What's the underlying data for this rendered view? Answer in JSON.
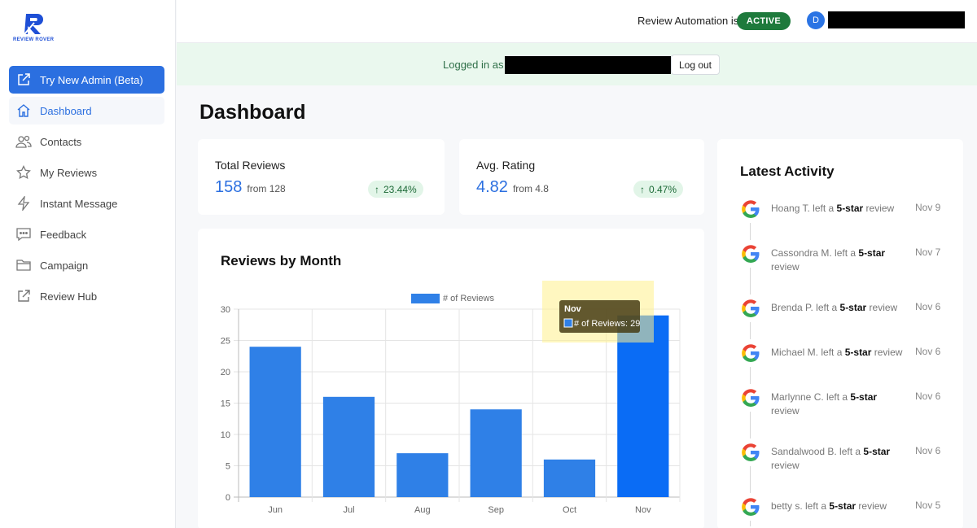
{
  "brand": {
    "name": "REVIEW ROVER"
  },
  "sidebar": {
    "items": [
      {
        "label": "Try New Admin (Beta)",
        "icon": "external-link-icon"
      },
      {
        "label": "Dashboard",
        "icon": "home-icon"
      },
      {
        "label": "Contacts",
        "icon": "users-icon"
      },
      {
        "label": "My Reviews",
        "icon": "star-icon"
      },
      {
        "label": "Instant Message",
        "icon": "lightning-icon"
      },
      {
        "label": "Feedback",
        "icon": "chat-icon"
      },
      {
        "label": "Campaign",
        "icon": "folder-icon"
      },
      {
        "label": "Review Hub",
        "icon": "external-link-icon"
      }
    ]
  },
  "topbar": {
    "automation_label": "Review Automation is",
    "status": "ACTIVE",
    "avatar_initial": "D"
  },
  "banner": {
    "logged_in_text": "Logged in as",
    "logout_label": "Log out"
  },
  "page_title": "Dashboard",
  "stats": [
    {
      "label": "Total Reviews",
      "value": "158",
      "from": "from 128",
      "change": "23.44%"
    },
    {
      "label": "Avg. Rating",
      "value": "4.82",
      "from": "from 4.8",
      "change": "0.47%"
    }
  ],
  "chart": {
    "title": "Reviews by Month",
    "tooltip": {
      "title": "Nov",
      "label": "# of Reviews: 29"
    }
  },
  "chart_data": {
    "type": "bar",
    "categories": [
      "Jun",
      "Jul",
      "Aug",
      "Sep",
      "Oct",
      "Nov"
    ],
    "series": [
      {
        "name": "# of Reviews",
        "values": [
          24,
          16,
          7,
          14,
          6,
          29
        ]
      }
    ],
    "ylim": [
      0,
      30
    ],
    "yticks": [
      0,
      5,
      10,
      15,
      20,
      25,
      30
    ],
    "grid": true,
    "legend": "top",
    "colors": {
      "bar": "#2f80e7",
      "highlight": "#0a6cf5"
    }
  },
  "activity": {
    "title": "Latest Activity",
    "items": [
      {
        "name": "Hoang T. left a",
        "rating": "5-star",
        "suffix": "review",
        "date": "Nov 9"
      },
      {
        "name": "Cassondra M. left a",
        "rating": "5-star",
        "suffix": "review",
        "date": "Nov 7"
      },
      {
        "name": "Brenda P. left a",
        "rating": "5-star",
        "suffix": "review",
        "date": "Nov 6"
      },
      {
        "name": "Michael M. left a",
        "rating": "5-star",
        "suffix": "review",
        "date": "Nov 6"
      },
      {
        "name": "Marlynne C. left a",
        "rating": "5-star",
        "suffix": "review",
        "date": "Nov 6"
      },
      {
        "name": "Sandalwood B. left a",
        "rating": "5-star",
        "suffix": "review",
        "date": "Nov 6"
      },
      {
        "name": "betty s. left a",
        "rating": "5-star",
        "suffix": "review",
        "date": "Nov 5"
      }
    ]
  }
}
